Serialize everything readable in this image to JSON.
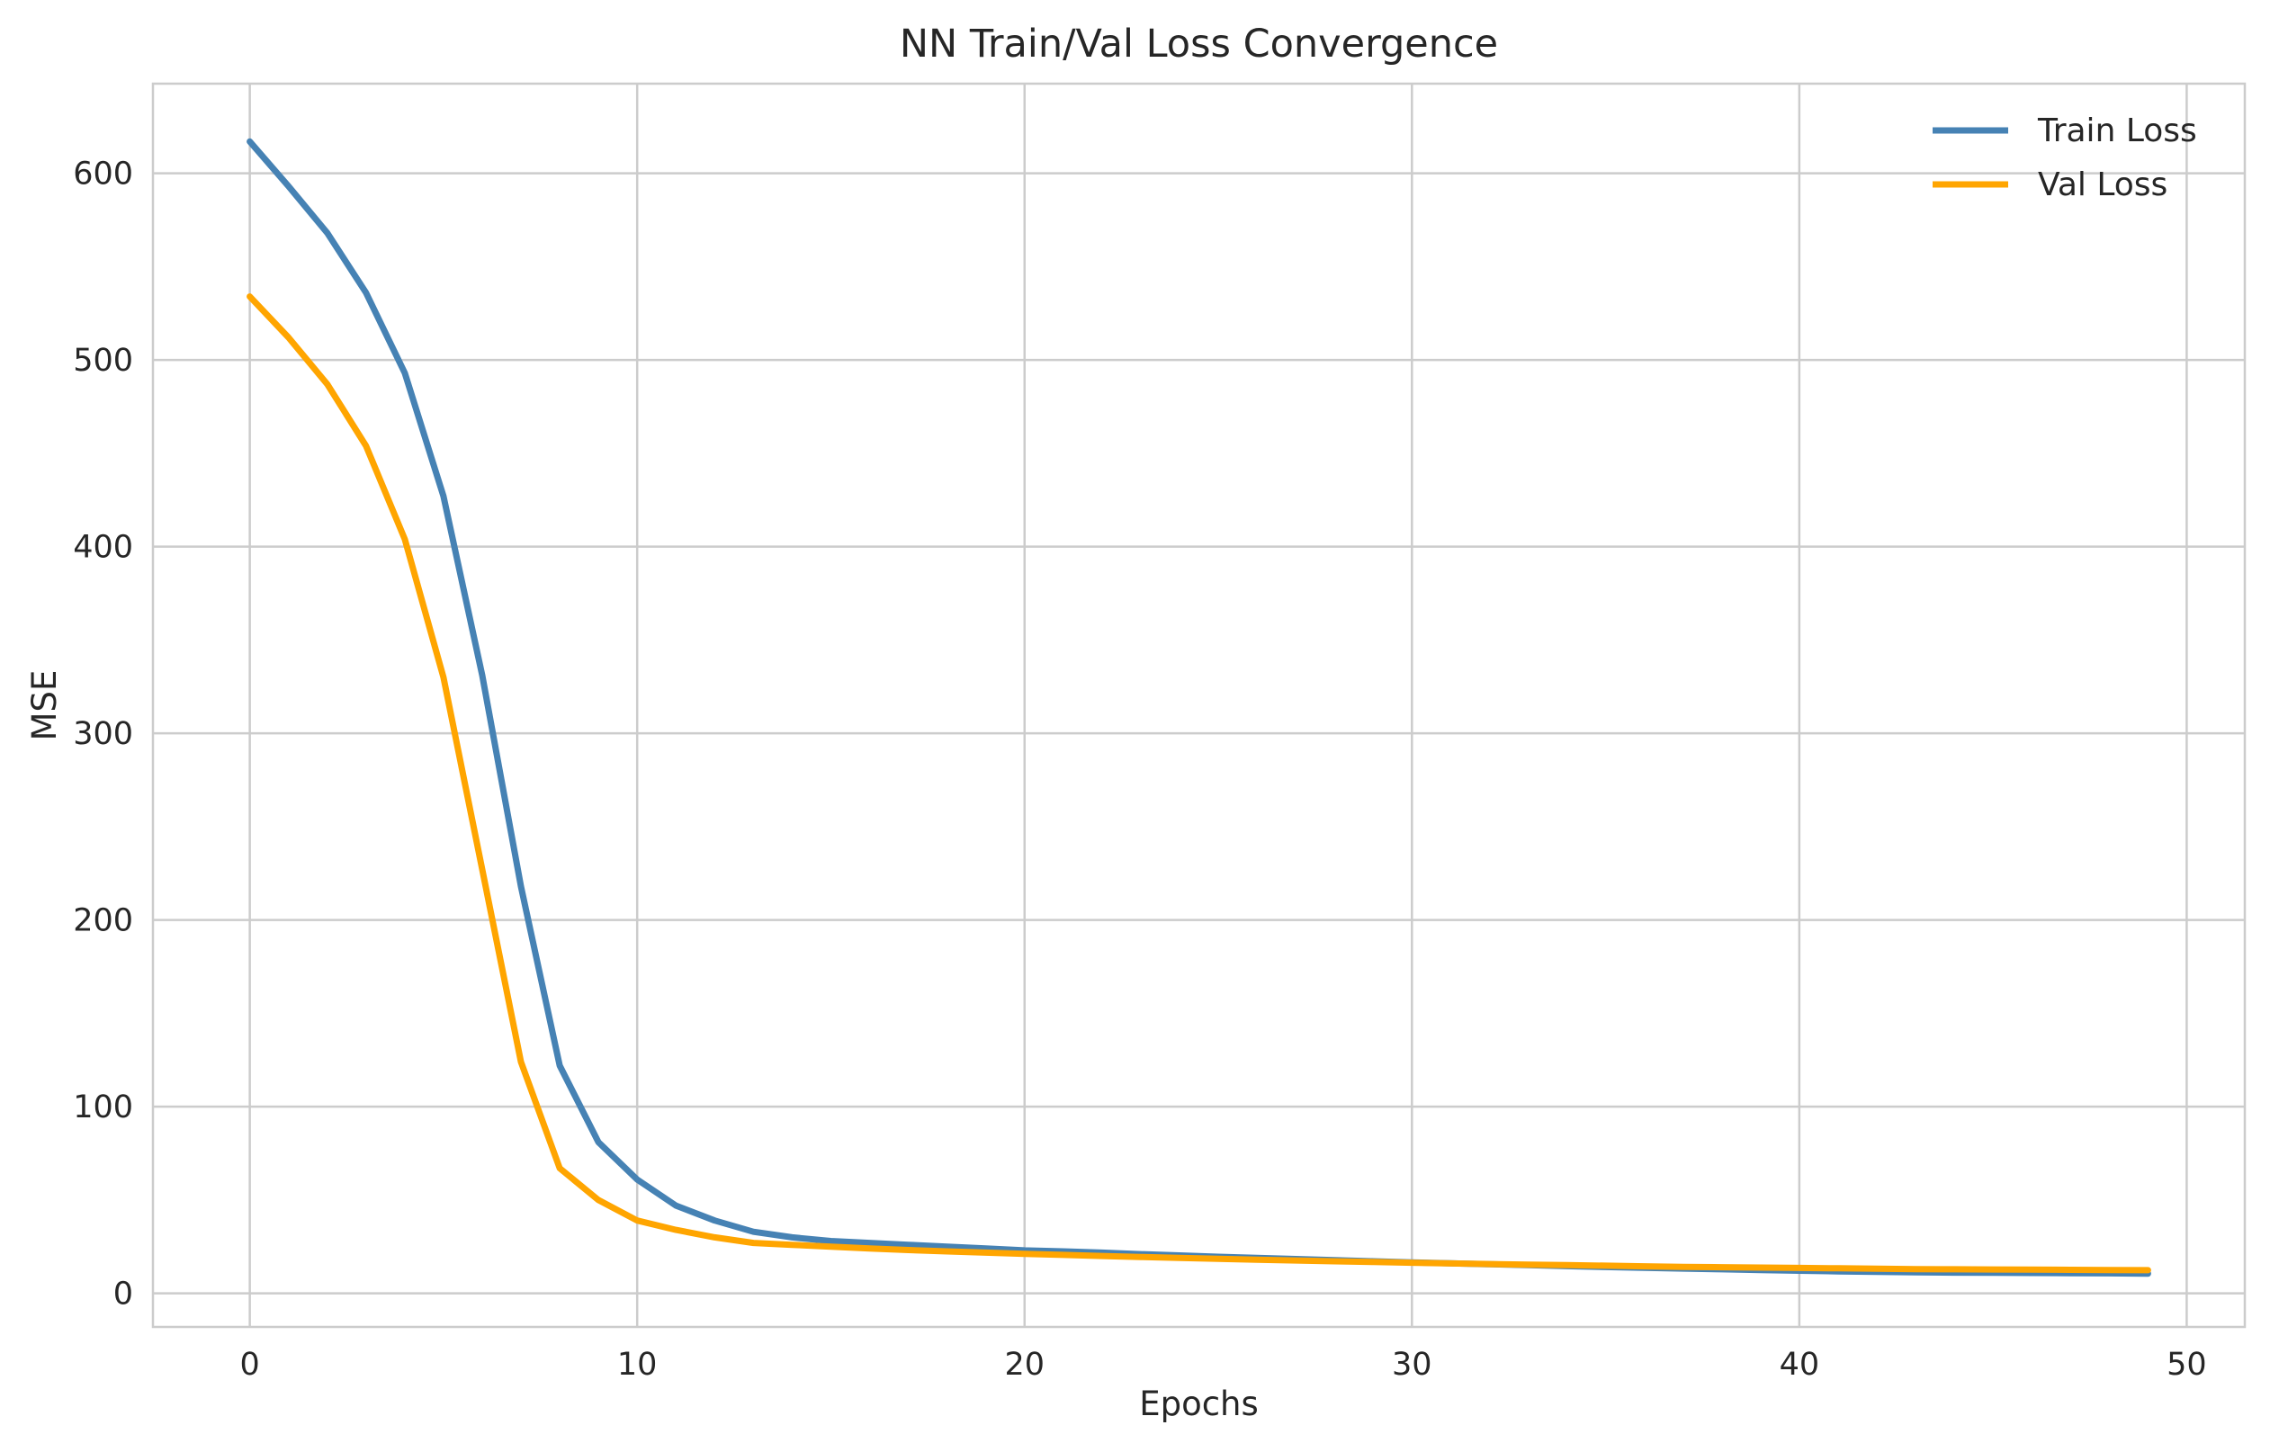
{
  "chart_data": {
    "type": "line",
    "title": "NN Train/Val Loss Convergence",
    "xlabel": "Epochs",
    "ylabel": "MSE",
    "xlim": [
      -2.5,
      51.5
    ],
    "ylim": [
      -18,
      648
    ],
    "xticks": [
      0,
      10,
      20,
      30,
      40,
      50
    ],
    "yticks": [
      0,
      100,
      200,
      300,
      400,
      500,
      600
    ],
    "xtick_labels": [
      "0",
      "10",
      "20",
      "30",
      "40",
      "50"
    ],
    "ytick_labels": [
      "0",
      "100",
      "200",
      "300",
      "400",
      "500",
      "600"
    ],
    "grid": true,
    "legend_position": "top-right",
    "x": [
      0,
      1,
      2,
      3,
      4,
      5,
      6,
      7,
      8,
      9,
      10,
      11,
      12,
      13,
      14,
      15,
      16,
      17,
      18,
      19,
      20,
      21,
      22,
      23,
      24,
      25,
      26,
      27,
      28,
      29,
      30,
      31,
      32,
      33,
      34,
      35,
      36,
      37,
      38,
      39,
      40,
      41,
      42,
      43,
      44,
      45,
      46,
      47,
      48,
      49
    ],
    "series": [
      {
        "name": "Train Loss",
        "color": "#4682b4",
        "values": [
          617,
          593,
          568,
          536,
          493,
          427,
          331,
          218,
          122,
          81,
          61,
          47,
          39,
          33,
          30,
          28,
          27,
          26,
          25,
          24,
          23,
          22.5,
          21.8,
          21,
          20.3,
          19.6,
          19,
          18.4,
          17.8,
          17.2,
          16.6,
          16.1,
          15.6,
          15.1,
          14.6,
          14.1,
          13.7,
          13.3,
          12.9,
          12.5,
          12.1,
          11.8,
          11.5,
          11.3,
          11.1,
          11,
          10.9,
          10.8,
          10.7,
          10.6
        ]
      },
      {
        "name": "Val Loss",
        "color": "#ffa500",
        "values": [
          534,
          512,
          487,
          454,
          404,
          330,
          227,
          124,
          67,
          50,
          39,
          34,
          30,
          27,
          26,
          25,
          24,
          23.2,
          22.5,
          21.8,
          21.2,
          20.6,
          20,
          19.5,
          19,
          18.5,
          18,
          17.6,
          17.2,
          16.8,
          16.4,
          16,
          15.7,
          15.4,
          15.1,
          14.8,
          14.5,
          14.2,
          14,
          13.8,
          13.6,
          13.4,
          13.2,
          13,
          12.9,
          12.8,
          12.7,
          12.6,
          12.5,
          12.4
        ]
      }
    ]
  }
}
